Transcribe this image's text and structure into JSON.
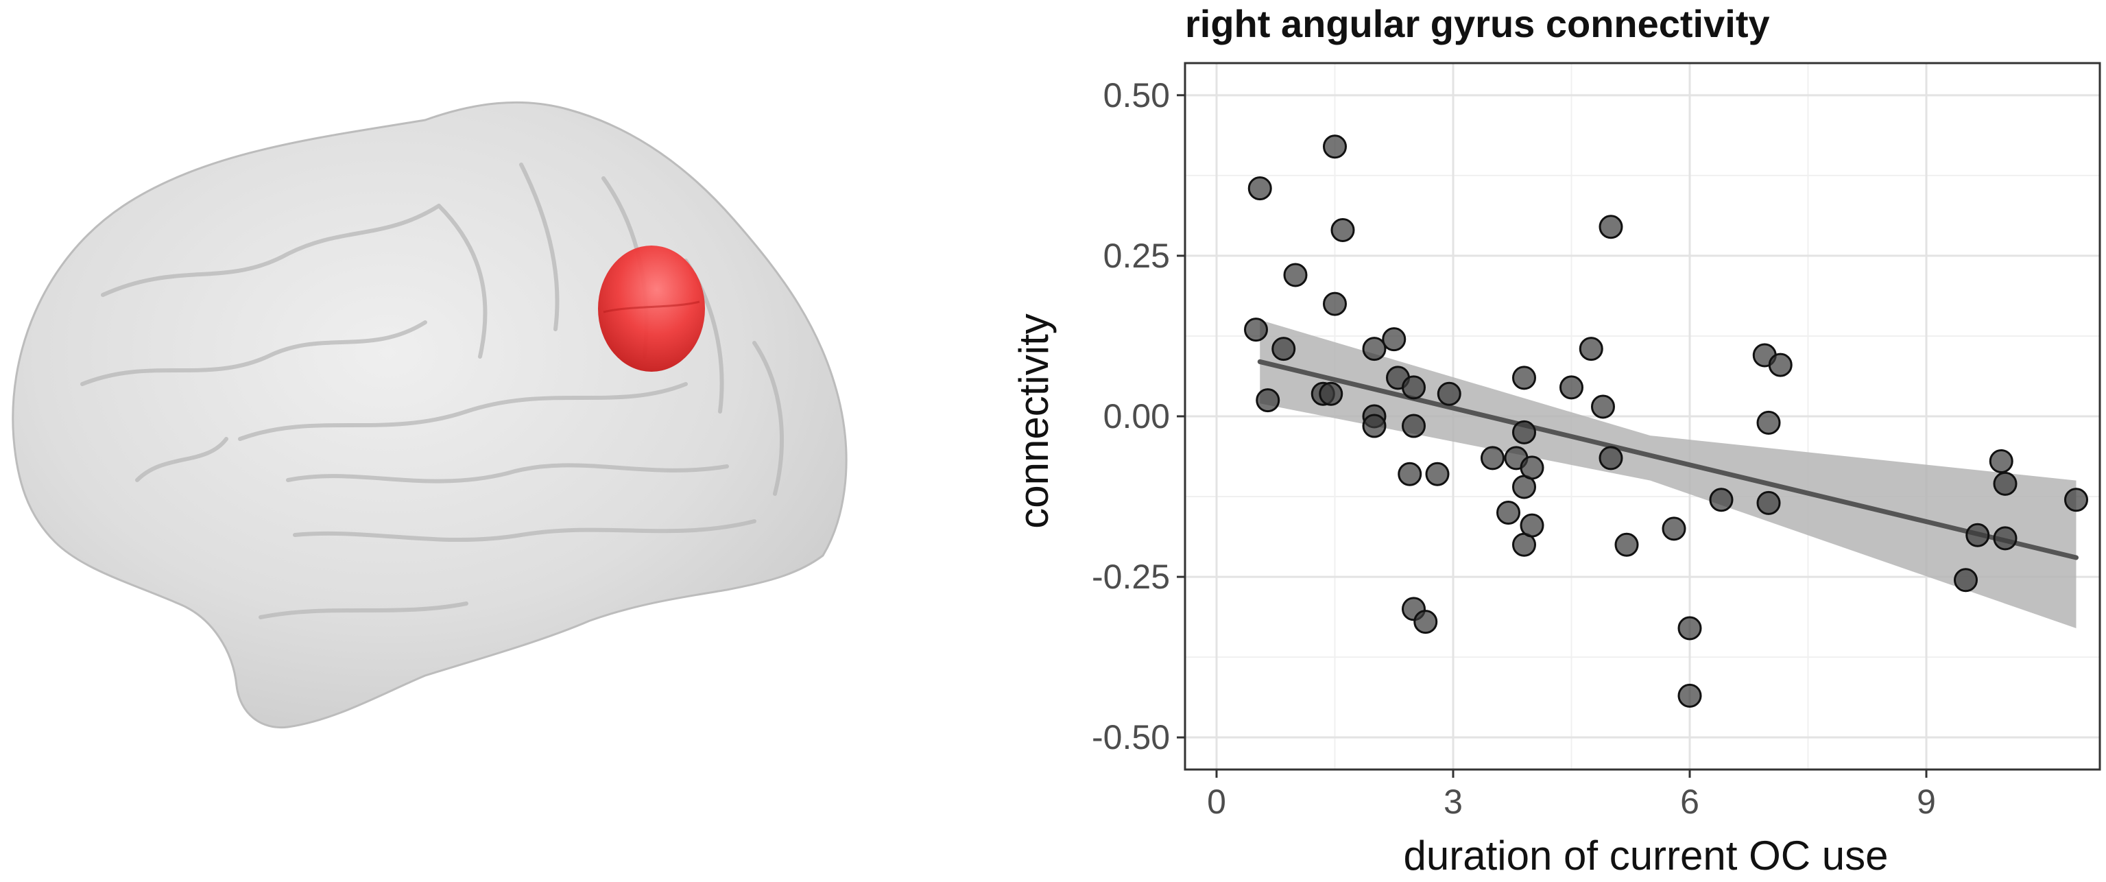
{
  "figure": {
    "brain": {
      "region": "right angular gyrus",
      "highlight_color": "#e8282b",
      "surface_color": "#d9d9d9"
    }
  },
  "chart_data": {
    "type": "scatter",
    "title": "right angular gyrus connectivity",
    "xlabel": "duration of current OC use",
    "ylabel": "connectivity",
    "xlim": [
      -0.4,
      11.2
    ],
    "ylim": [
      -0.55,
      0.55
    ],
    "x_ticks": [
      0,
      3,
      6,
      9
    ],
    "x_tick_labels": [
      "0",
      "3",
      "6",
      "9"
    ],
    "y_ticks": [
      -0.5,
      -0.25,
      0.0,
      0.25,
      0.5
    ],
    "y_tick_labels": [
      "-0.50",
      "-0.25",
      "0.00",
      "0.25",
      "0.50"
    ],
    "grid": true,
    "point_color": "#3a3a3a",
    "fit": {
      "type": "linear",
      "color": "#555555",
      "ci_color": "#b5b5b5",
      "line": [
        [
          0.55,
          0.085
        ],
        [
          10.9,
          -0.22
        ]
      ],
      "ci_upper": [
        [
          0.55,
          0.15
        ],
        [
          5.5,
          -0.03
        ],
        [
          10.9,
          -0.1
        ]
      ],
      "ci_lower": [
        [
          0.55,
          0.02
        ],
        [
          5.5,
          -0.1
        ],
        [
          10.9,
          -0.33
        ]
      ]
    },
    "points": [
      [
        0.5,
        0.135
      ],
      [
        0.55,
        0.355
      ],
      [
        0.65,
        0.025
      ],
      [
        0.85,
        0.105
      ],
      [
        1.0,
        0.22
      ],
      [
        1.35,
        0.035
      ],
      [
        1.45,
        0.035
      ],
      [
        1.5,
        0.42
      ],
      [
        1.5,
        0.175
      ],
      [
        1.6,
        0.29
      ],
      [
        2.0,
        0.105
      ],
      [
        2.0,
        0.0
      ],
      [
        2.0,
        -0.015
      ],
      [
        2.25,
        0.12
      ],
      [
        2.3,
        0.06
      ],
      [
        2.45,
        -0.09
      ],
      [
        2.5,
        0.045
      ],
      [
        2.5,
        -0.015
      ],
      [
        2.5,
        -0.3
      ],
      [
        2.65,
        -0.32
      ],
      [
        2.8,
        -0.09
      ],
      [
        2.95,
        0.035
      ],
      [
        3.5,
        -0.065
      ],
      [
        3.7,
        -0.15
      ],
      [
        3.8,
        -0.065
      ],
      [
        3.9,
        0.06
      ],
      [
        3.9,
        -0.025
      ],
      [
        3.9,
        -0.11
      ],
      [
        3.9,
        -0.2
      ],
      [
        4.0,
        -0.08
      ],
      [
        4.0,
        -0.17
      ],
      [
        4.5,
        0.045
      ],
      [
        4.75,
        0.105
      ],
      [
        4.9,
        0.015
      ],
      [
        5.0,
        0.295
      ],
      [
        5.0,
        -0.065
      ],
      [
        5.2,
        -0.2
      ],
      [
        5.8,
        -0.175
      ],
      [
        6.0,
        -0.33
      ],
      [
        6.0,
        -0.435
      ],
      [
        6.4,
        -0.13
      ],
      [
        6.95,
        0.095
      ],
      [
        7.0,
        -0.01
      ],
      [
        7.0,
        -0.135
      ],
      [
        7.15,
        0.08
      ],
      [
        9.5,
        -0.255
      ],
      [
        9.65,
        -0.185
      ],
      [
        9.95,
        -0.07
      ],
      [
        10.0,
        -0.105
      ],
      [
        10.0,
        -0.19
      ],
      [
        10.9,
        -0.13
      ]
    ]
  }
}
